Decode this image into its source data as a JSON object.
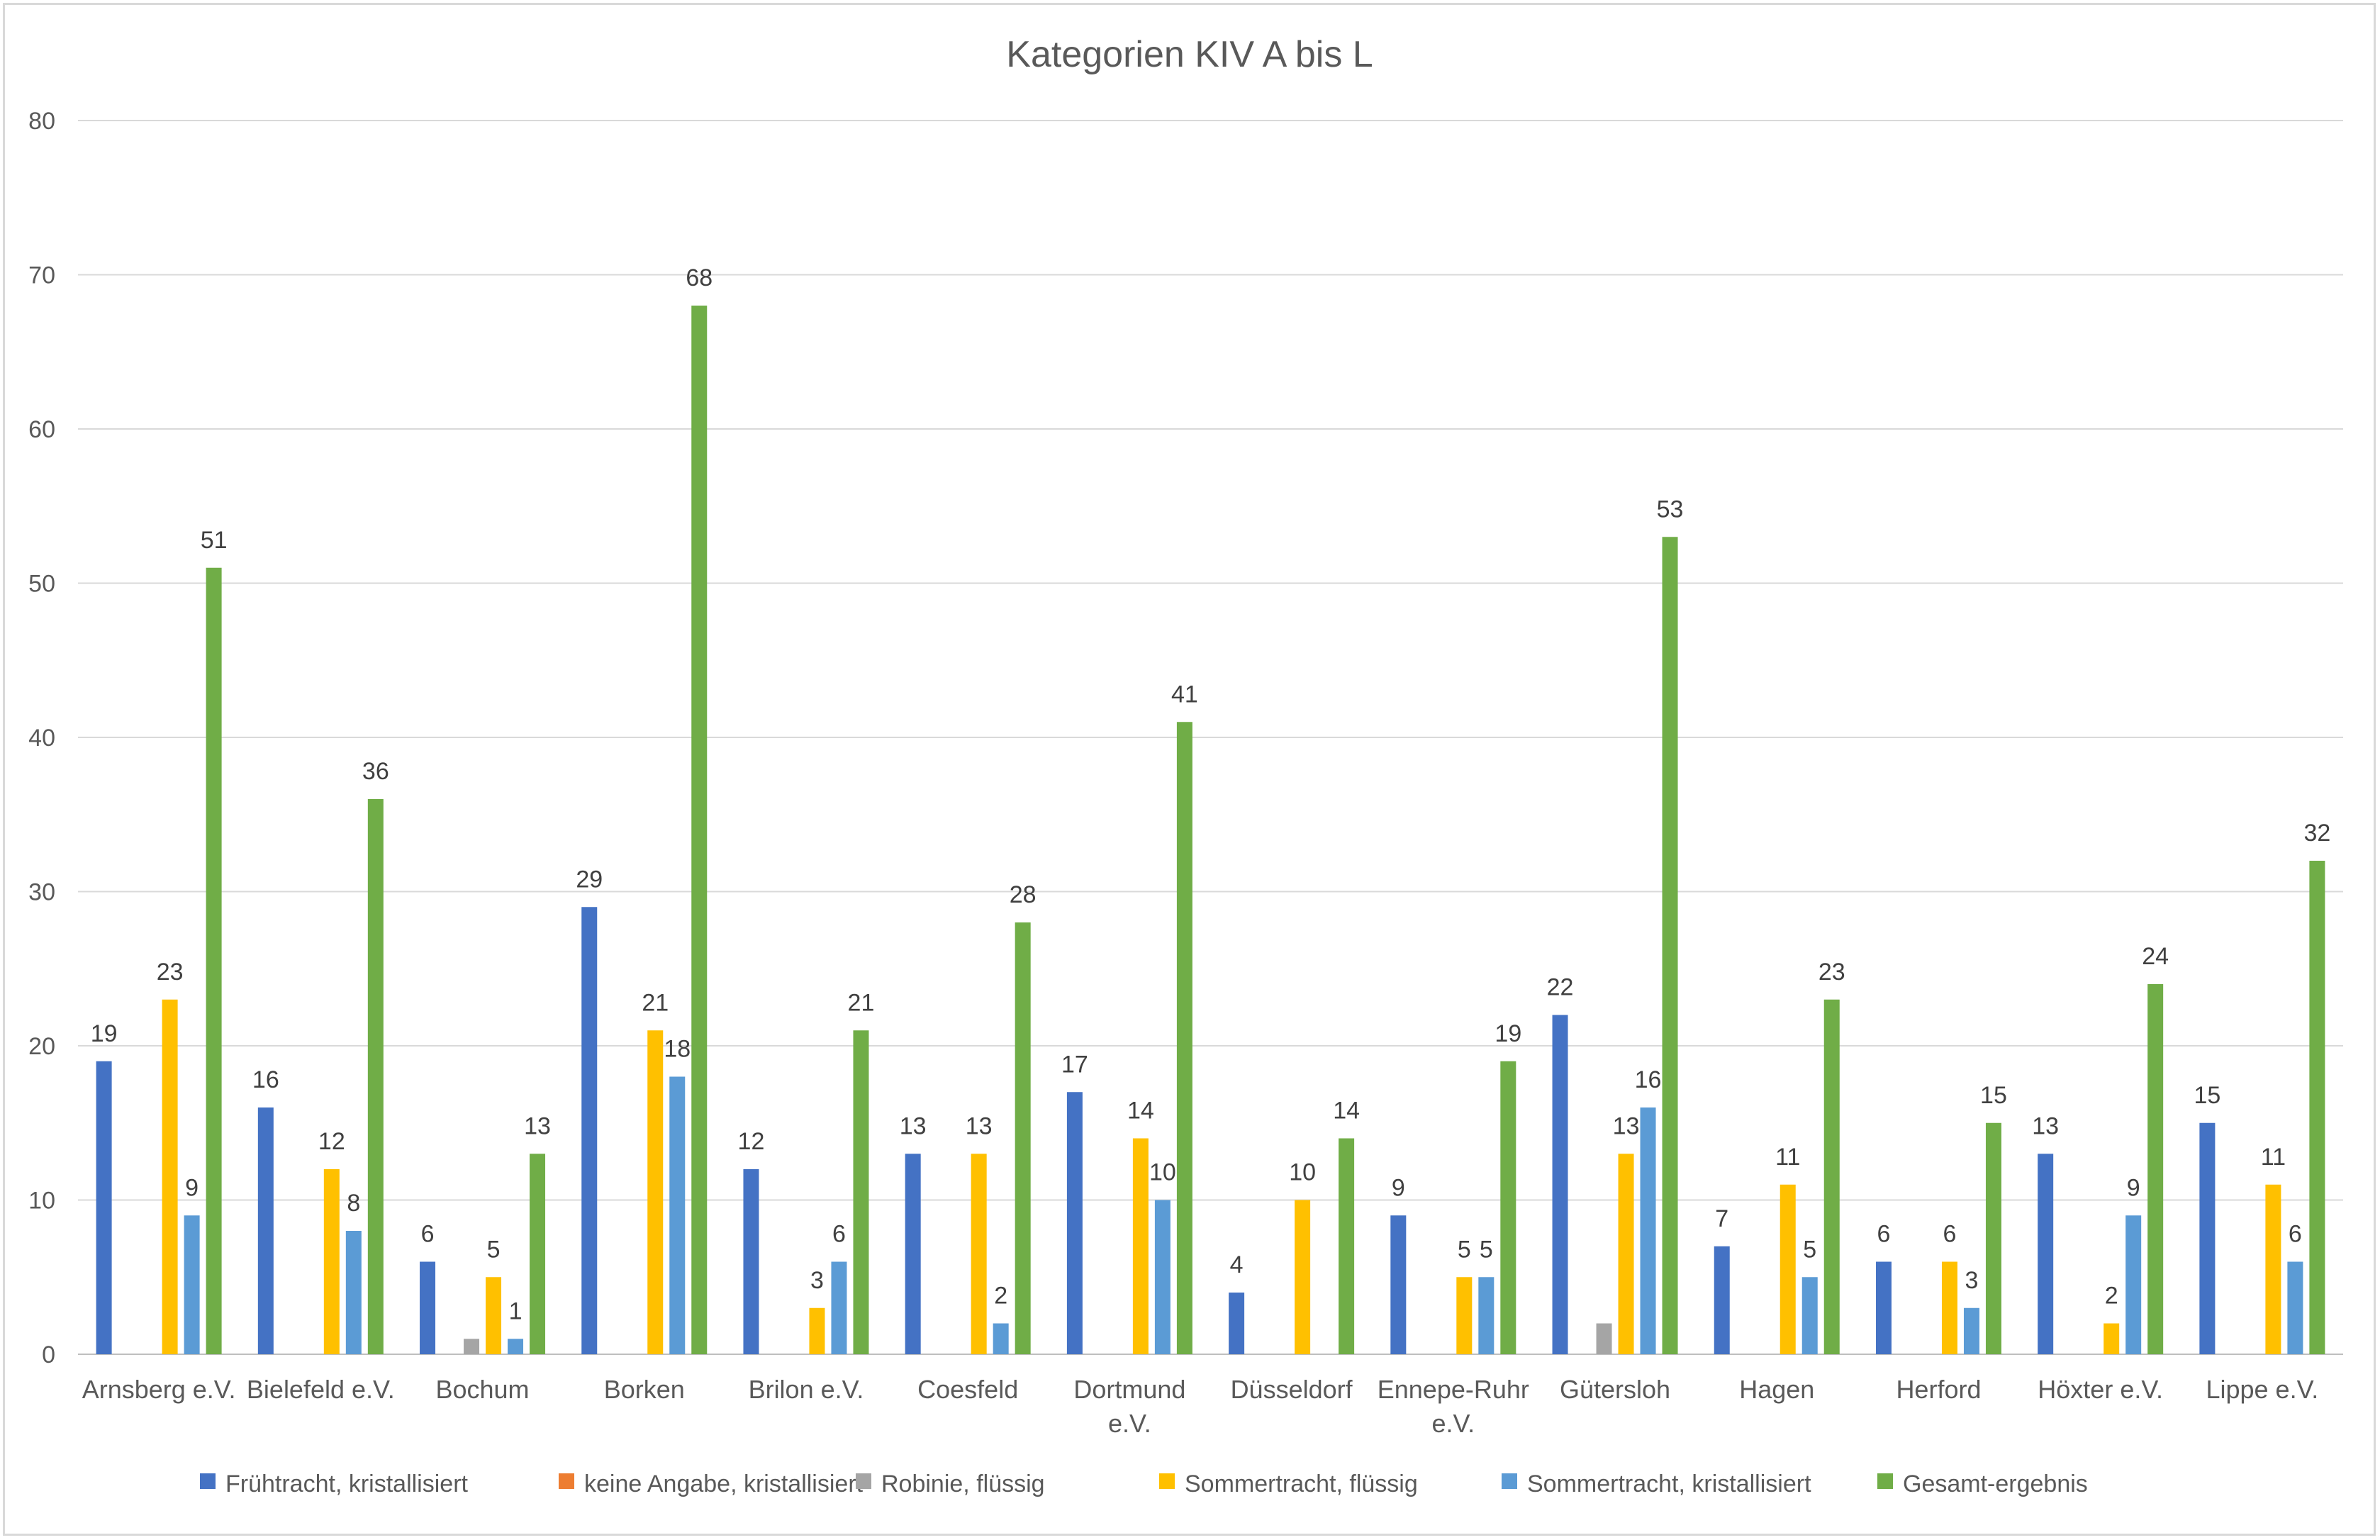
{
  "chart_data": {
    "type": "bar",
    "title": "Kategorien KIV A bis L",
    "xlabel": "",
    "ylabel": "",
    "ylim": [
      0,
      80
    ],
    "yticks": [
      0,
      10,
      20,
      30,
      40,
      50,
      60,
      70,
      80
    ],
    "grid": true,
    "legend_position": "bottom",
    "categories": [
      [
        "Arnsberg e.V."
      ],
      [
        "Bielefeld e.V."
      ],
      [
        "Bochum"
      ],
      [
        "Borken"
      ],
      [
        "Brilon e.V."
      ],
      [
        "Coesfeld"
      ],
      [
        "Dortmund",
        "e.V."
      ],
      [
        "Düsseldorf"
      ],
      [
        "Ennepe-Ruhr",
        "e.V."
      ],
      [
        "Gütersloh"
      ],
      [
        "Hagen"
      ],
      [
        "Herford"
      ],
      [
        "Höxter e.V."
      ],
      [
        "Lippe e.V."
      ]
    ],
    "series": [
      {
        "name": "Frühtracht, kristallisiert",
        "color": "#4472c4",
        "values": [
          19,
          16,
          6,
          29,
          12,
          13,
          17,
          4,
          9,
          22,
          7,
          6,
          13,
          15
        ]
      },
      {
        "name": "keine Angabe, kristallisiert",
        "color": "#ed7d31",
        "values": [
          null,
          null,
          null,
          null,
          null,
          null,
          null,
          null,
          null,
          null,
          null,
          null,
          null,
          null
        ]
      },
      {
        "name": "Robinie, flüssig",
        "color": "#a5a5a5",
        "values": [
          null,
          null,
          1,
          null,
          null,
          null,
          null,
          null,
          null,
          2,
          null,
          null,
          null,
          null
        ]
      },
      {
        "name": "Sommertracht, flüssig",
        "color": "#ffc000",
        "values": [
          23,
          12,
          5,
          21,
          3,
          13,
          14,
          10,
          5,
          13,
          11,
          6,
          2,
          11
        ]
      },
      {
        "name": "Sommertracht, kristallisiert",
        "color": "#5b9bd5",
        "values": [
          9,
          8,
          1,
          18,
          6,
          2,
          10,
          null,
          5,
          16,
          5,
          3,
          9,
          6
        ]
      },
      {
        "name": "Gesamt-ergebnis",
        "color": "#70ad47",
        "values": [
          51,
          36,
          13,
          68,
          21,
          28,
          41,
          14,
          19,
          53,
          23,
          15,
          24,
          32
        ]
      }
    ],
    "data_labels_shown_for": [
      "Frühtracht, kristallisiert",
      "Sommertracht, flüssig",
      "Sommertracht, kristallisiert",
      "Gesamt-ergebnis"
    ]
  }
}
